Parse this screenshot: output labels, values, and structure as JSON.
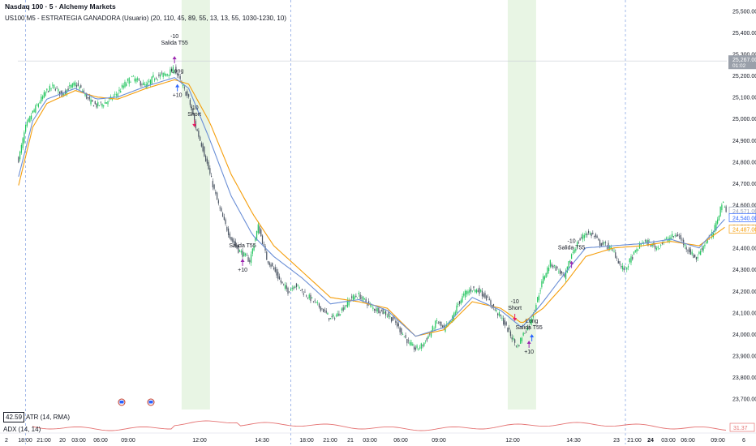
{
  "header": {
    "title": "Nasdaq 100 · 5 · Alchemy Markets",
    "strategy": "US100 M5 - ESTRATEGIA GANADORA (Usuario) (20, 110, 45, 89, 55, 13, 13, 55, 1030-1230, 10)"
  },
  "indicators": {
    "atr_label": "ATR (14, RMA)",
    "atr_value": "42.59",
    "adx_label": "ADX (14, 14)",
    "adx_value": "31.37"
  },
  "colors": {
    "up": "#22c55e",
    "down": "#4b5563",
    "ema_fast": "#6b8fd6",
    "ema_slow": "#f59e0b",
    "session_bg": "#e8f5e4",
    "adx": "#e57373",
    "long_marker": "#2962ff",
    "short_marker": "#e91e63",
    "exit_marker": "#9c27b0"
  },
  "chart_data": {
    "type": "candlestick",
    "title": "Nasdaq 100 · 5 · Alchemy Markets",
    "ylim": [
      23650,
      25550
    ],
    "y_ticks": [
      "25,500.00",
      "25,400.00",
      "25,300.00",
      "25,200.00",
      "25,100.00",
      "25,000.00",
      "24,900.00",
      "24,800.00",
      "24,700.00",
      "24,600.00",
      "24,500.00",
      "24,400.00",
      "24,300.00",
      "24,200.00",
      "24,100.00",
      "24,000.00",
      "23,900.00",
      "23,800.00",
      "23,700.00"
    ],
    "x_ticks": [
      "2",
      "18:00",
      "21:00",
      "20",
      "03:00",
      "06:00",
      "09:00",
      "12:00",
      "14:30",
      "18:00",
      "21:00",
      "21",
      "03:00",
      "06:00",
      "09:00",
      "12:00",
      "14:30",
      "23",
      "21:00",
      "24",
      "03:00",
      "06:00",
      "09:00",
      "6"
    ],
    "price_anchors": [
      [
        0,
        24810
      ],
      [
        2,
        24870
      ],
      [
        5,
        24960
      ],
      [
        10,
        25030
      ],
      [
        15,
        25080
      ],
      [
        20,
        25130
      ],
      [
        25,
        25150
      ],
      [
        30,
        25110
      ],
      [
        35,
        25140
      ],
      [
        40,
        25160
      ],
      [
        45,
        25130
      ],
      [
        50,
        25080
      ],
      [
        55,
        25060
      ],
      [
        60,
        25070
      ],
      [
        65,
        25090
      ],
      [
        70,
        25120
      ],
      [
        75,
        25160
      ],
      [
        80,
        25190
      ],
      [
        85,
        25170
      ],
      [
        90,
        25150
      ],
      [
        95,
        25190
      ],
      [
        100,
        25200
      ],
      [
        105,
        25210
      ],
      [
        110,
        25230
      ],
      [
        115,
        25160
      ],
      [
        120,
        25090
      ],
      [
        125,
        24960
      ],
      [
        130,
        24860
      ],
      [
        135,
        24740
      ],
      [
        140,
        24620
      ],
      [
        145,
        24520
      ],
      [
        150,
        24440
      ],
      [
        155,
        24390
      ],
      [
        160,
        24360
      ],
      [
        163,
        24340
      ],
      [
        166,
        24420
      ],
      [
        169,
        24500
      ],
      [
        172,
        24430
      ],
      [
        175,
        24350
      ],
      [
        180,
        24300
      ],
      [
        185,
        24240
      ],
      [
        190,
        24200
      ],
      [
        195,
        24230
      ],
      [
        200,
        24200
      ],
      [
        205,
        24170
      ],
      [
        210,
        24140
      ],
      [
        215,
        24110
      ],
      [
        220,
        24070
      ],
      [
        225,
        24090
      ],
      [
        230,
        24130
      ],
      [
        235,
        24170
      ],
      [
        240,
        24180
      ],
      [
        245,
        24150
      ],
      [
        250,
        24120
      ],
      [
        255,
        24110
      ],
      [
        260,
        24090
      ],
      [
        265,
        24060
      ],
      [
        270,
        24010
      ],
      [
        275,
        23960
      ],
      [
        280,
        23930
      ],
      [
        285,
        23950
      ],
      [
        290,
        24000
      ],
      [
        295,
        24060
      ],
      [
        300,
        24020
      ],
      [
        305,
        24060
      ],
      [
        310,
        24140
      ],
      [
        315,
        24190
      ],
      [
        320,
        24210
      ],
      [
        325,
        24200
      ],
      [
        330,
        24170
      ],
      [
        335,
        24120
      ],
      [
        340,
        24080
      ],
      [
        345,
        24020
      ],
      [
        350,
        23960
      ],
      [
        352,
        23940
      ],
      [
        355,
        23990
      ],
      [
        360,
        24040
      ],
      [
        365,
        24140
      ],
      [
        370,
        24260
      ],
      [
        375,
        24330
      ],
      [
        380,
        24300
      ],
      [
        385,
        24260
      ],
      [
        390,
        24370
      ],
      [
        395,
        24430
      ],
      [
        400,
        24470
      ],
      [
        405,
        24460
      ],
      [
        410,
        24420
      ],
      [
        415,
        24410
      ],
      [
        420,
        24380
      ],
      [
        425,
        24310
      ],
      [
        428,
        24300
      ],
      [
        432,
        24350
      ],
      [
        435,
        24380
      ],
      [
        440,
        24430
      ],
      [
        445,
        24420
      ],
      [
        450,
        24400
      ],
      [
        455,
        24430
      ],
      [
        460,
        24450
      ],
      [
        465,
        24460
      ],
      [
        470,
        24410
      ],
      [
        475,
        24370
      ],
      [
        478,
        24350
      ],
      [
        482,
        24400
      ],
      [
        486,
        24440
      ],
      [
        490,
        24470
      ],
      [
        494,
        24560
      ],
      [
        496,
        24610
      ],
      [
        499,
        24580
      ]
    ],
    "ema_fast_anchors": [
      [
        0,
        24730
      ],
      [
        10,
        24990
      ],
      [
        20,
        25090
      ],
      [
        40,
        25140
      ],
      [
        55,
        25090
      ],
      [
        70,
        25100
      ],
      [
        90,
        25150
      ],
      [
        110,
        25190
      ],
      [
        120,
        25140
      ],
      [
        135,
        24900
      ],
      [
        150,
        24640
      ],
      [
        165,
        24460
      ],
      [
        180,
        24360
      ],
      [
        200,
        24260
      ],
      [
        220,
        24140
      ],
      [
        240,
        24160
      ],
      [
        260,
        24110
      ],
      [
        280,
        23990
      ],
      [
        300,
        24030
      ],
      [
        320,
        24170
      ],
      [
        340,
        24110
      ],
      [
        355,
        24030
      ],
      [
        370,
        24150
      ],
      [
        385,
        24280
      ],
      [
        400,
        24400
      ],
      [
        420,
        24410
      ],
      [
        440,
        24420
      ],
      [
        460,
        24440
      ],
      [
        480,
        24400
      ],
      [
        499,
        24540
      ]
    ],
    "ema_slow_anchors": [
      [
        0,
        24690
      ],
      [
        10,
        24960
      ],
      [
        20,
        25070
      ],
      [
        40,
        25130
      ],
      [
        55,
        25100
      ],
      [
        70,
        25090
      ],
      [
        90,
        25140
      ],
      [
        110,
        25180
      ],
      [
        120,
        25160
      ],
      [
        135,
        24980
      ],
      [
        150,
        24740
      ],
      [
        165,
        24560
      ],
      [
        180,
        24410
      ],
      [
        200,
        24290
      ],
      [
        220,
        24170
      ],
      [
        240,
        24150
      ],
      [
        260,
        24120
      ],
      [
        280,
        23990
      ],
      [
        300,
        24020
      ],
      [
        320,
        24150
      ],
      [
        340,
        24120
      ],
      [
        355,
        24050
      ],
      [
        370,
        24120
      ],
      [
        385,
        24230
      ],
      [
        400,
        24360
      ],
      [
        420,
        24400
      ],
      [
        440,
        24410
      ],
      [
        460,
        24430
      ],
      [
        480,
        24410
      ],
      [
        499,
        24500
      ]
    ],
    "session_ranges": [
      [
        115,
        135
      ],
      [
        345,
        365
      ]
    ],
    "last_price": "25,267.00",
    "last_price_time": "01:02",
    "price_labels": [
      {
        "value": "24,571.00",
        "color": "#9aa3b5"
      },
      {
        "value": "24,540.00",
        "color": "#2962ff"
      },
      {
        "value": "24,487.00",
        "color": "#f59e0b"
      }
    ],
    "trades": [
      {
        "kind": "exit",
        "label_top": "-10",
        "label": "Salida T55",
        "index": 110,
        "price": 25290
      },
      {
        "kind": "long",
        "label": "Long",
        "label2": "+10",
        "index": 112,
        "price": 25160
      },
      {
        "kind": "short",
        "label_top": "-10",
        "label": "Short",
        "index": 124,
        "price": 24960
      },
      {
        "kind": "exit",
        "label": "Salida T55",
        "label2": "+10",
        "index": 158,
        "price": 24350
      },
      {
        "kind": "short",
        "label_top": "-10",
        "label": "Short",
        "index": 350,
        "price": 24060
      },
      {
        "kind": "long",
        "label": "Long",
        "index": 362,
        "price": 24000
      },
      {
        "kind": "exit",
        "label": "Salida T55",
        "label2": "+10",
        "index": 360,
        "price": 23970
      },
      {
        "kind": "exit",
        "label_top": "-10",
        "label": "Salida T55",
        "index": 390,
        "price": 24340
      }
    ]
  }
}
